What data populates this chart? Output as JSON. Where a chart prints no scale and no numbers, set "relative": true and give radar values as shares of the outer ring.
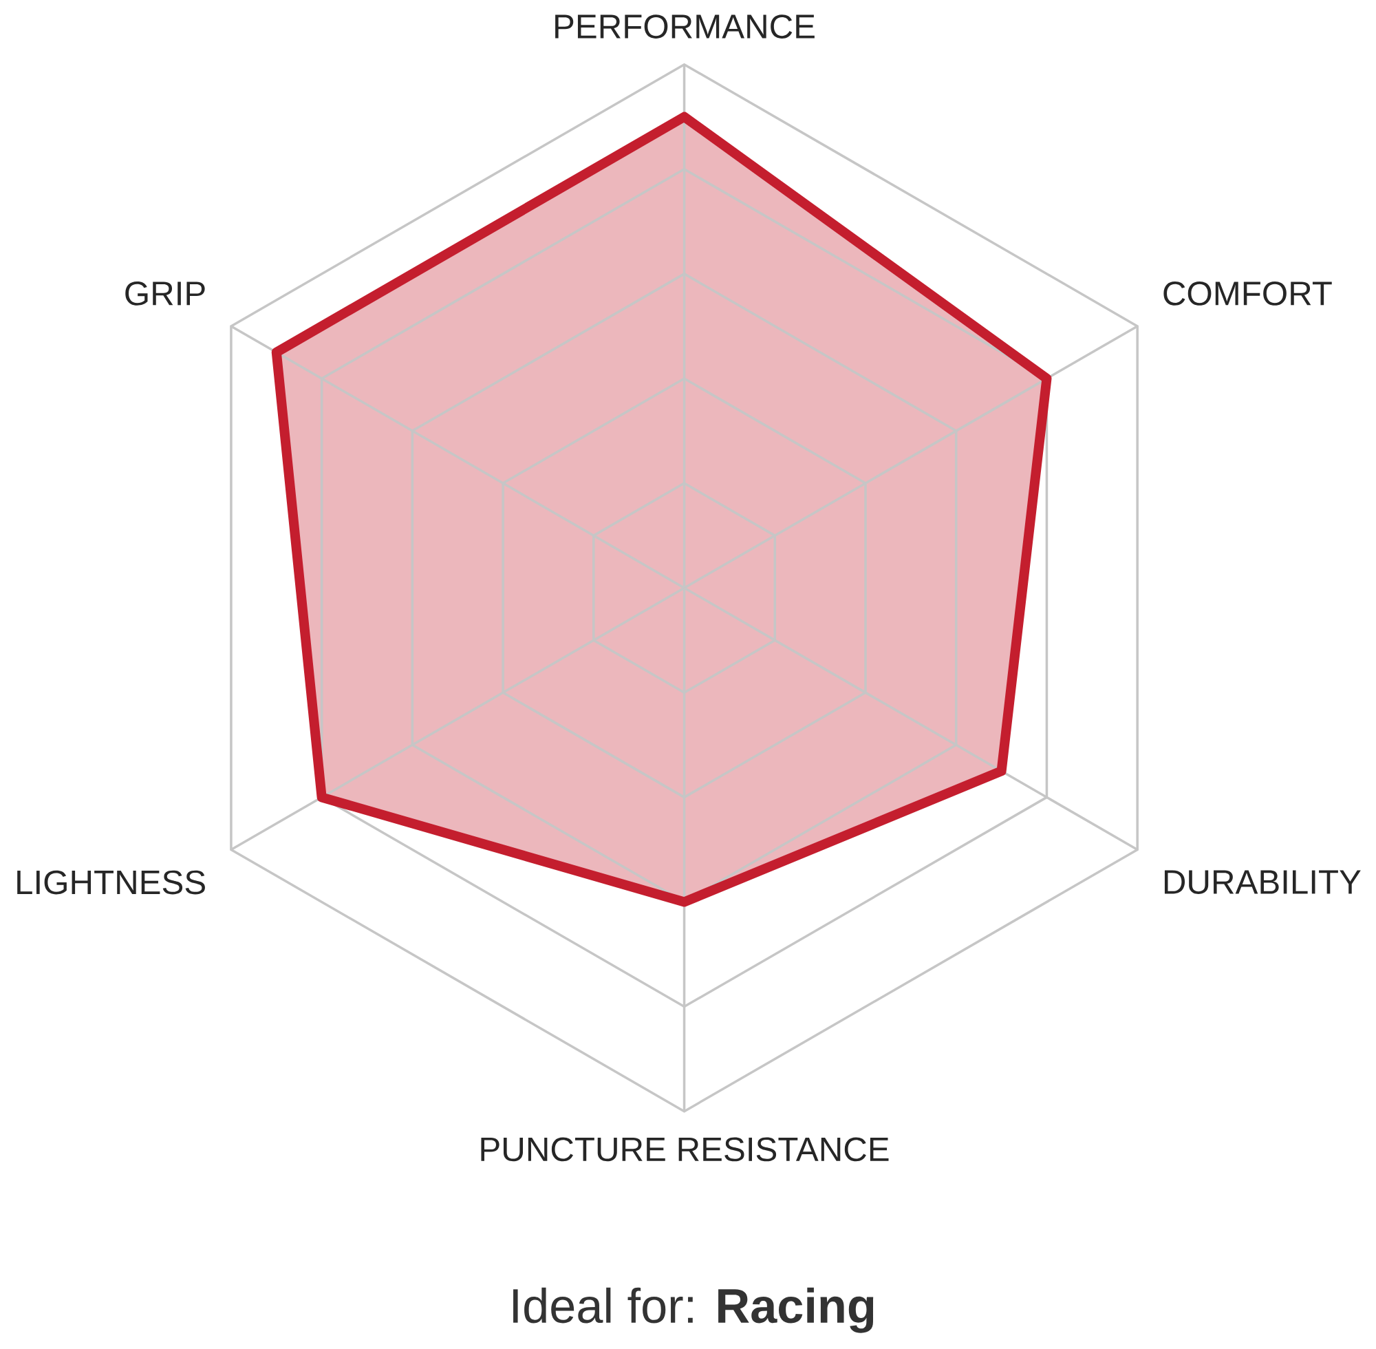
{
  "chart_data": {
    "type": "radar",
    "relative": true,
    "grid": true,
    "title": "Ideal for: **Racing**",
    "categories": [
      "PERFORMANCE",
      "COMFORT",
      "DURABILITY",
      "PUNCTURE RESISTANCE",
      "LIGHTNESS",
      "GRIP"
    ],
    "series": [
      {
        "color": "#c41e2e",
        "values": [
          0.9,
          0.8,
          0.7,
          0.6,
          0.8,
          0.9
        ]
      }
    ]
  }
}
